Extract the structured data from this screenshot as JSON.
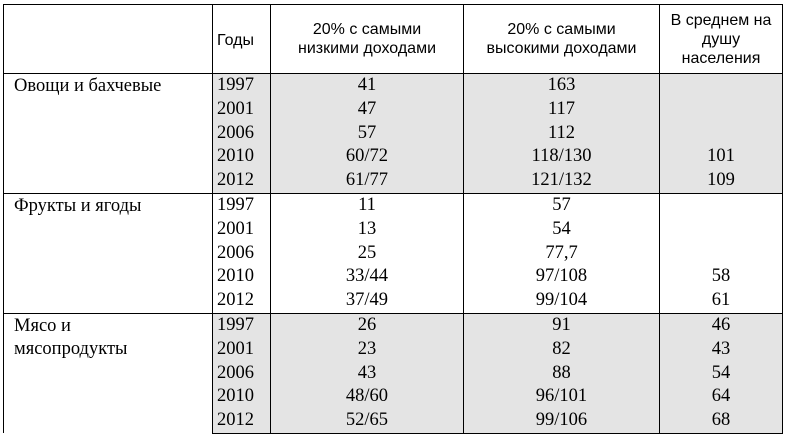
{
  "table": {
    "headers": {
      "category": "",
      "years": "Годы",
      "low_income_line1": "20% с самыми",
      "low_income_line2": "низкими доходами",
      "high_income_line1": "20% с самыми",
      "high_income_line2": "высокими доходами",
      "avg_line1": "В среднем на",
      "avg_line2": "душу",
      "avg_line3": "населения"
    },
    "groups": [
      {
        "category_line1": "Овощи и бахчевые",
        "category_line2": "",
        "rows": [
          {
            "year": "1997",
            "low": "41",
            "high": "163",
            "avg": ""
          },
          {
            "year": "2001",
            "low": "47",
            "high": "117",
            "avg": ""
          },
          {
            "year": "2006",
            "low": "57",
            "high": "112",
            "avg": ""
          },
          {
            "year": "2010",
            "low": "60/72",
            "high": "118/130",
            "avg": "101"
          },
          {
            "year": "2012",
            "low": "61/77",
            "high": "121/132",
            "avg": "109"
          }
        ]
      },
      {
        "category_line1": "Фрукты и ягоды",
        "category_line2": "",
        "rows": [
          {
            "year": "1997",
            "low": "11",
            "high": "57",
            "avg": ""
          },
          {
            "year": "2001",
            "low": "13",
            "high": "54",
            "avg": ""
          },
          {
            "year": "2006",
            "low": "25",
            "high": "77,7",
            "avg": ""
          },
          {
            "year": "2010",
            "low": "33/44",
            "high": "97/108",
            "avg": "58"
          },
          {
            "year": "2012",
            "low": "37/49",
            "high": "99/104",
            "avg": "61"
          }
        ]
      },
      {
        "category_line1": "Мясо и",
        "category_line2": "мясопродукты",
        "rows": [
          {
            "year": "1997",
            "low": "26",
            "high": "91",
            "avg": "46"
          },
          {
            "year": "2001",
            "low": "23",
            "high": "82",
            "avg": "43"
          },
          {
            "year": "2006",
            "low": "43",
            "high": "88",
            "avg": "54"
          },
          {
            "year": "2010",
            "low": "48/60",
            "high": "96/101",
            "avg": "64"
          },
          {
            "year": "2012",
            "low": "52/65",
            "high": "99/106",
            "avg": "68"
          }
        ]
      }
    ]
  },
  "colors": {
    "shade": "#e4e4e4",
    "border": "#000000"
  }
}
